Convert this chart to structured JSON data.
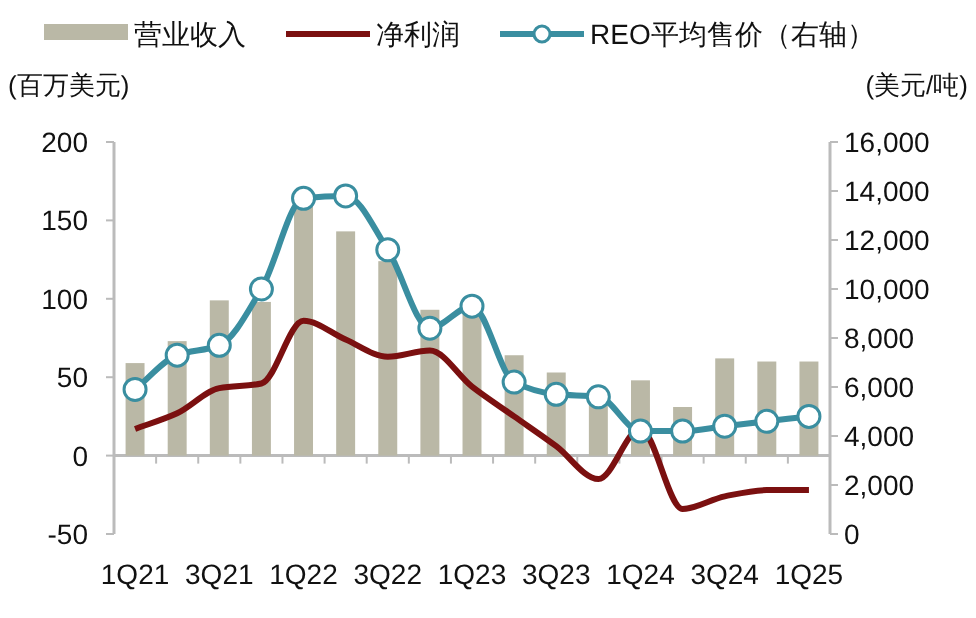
{
  "chart_data": {
    "type": "bar",
    "categories": [
      "1Q21",
      null,
      "3Q21",
      null,
      "1Q22",
      null,
      "3Q22",
      null,
      "1Q23",
      null,
      "3Q23",
      null,
      "1Q24",
      null,
      "3Q24",
      null,
      "1Q25"
    ],
    "series": [
      {
        "name": "营业收入",
        "color": "#bab8a6",
        "values": [
          59,
          73,
          99,
          98,
          159,
          143,
          124,
          93,
          91,
          64,
          53,
          36,
          48,
          31,
          62,
          60,
          60
        ]
      },
      {
        "name": "净利润",
        "type": "line",
        "color": "#7b1010",
        "values": [
          17,
          27,
          43,
          46,
          86,
          74,
          63,
          67,
          44,
          25,
          6,
          -15,
          17,
          -34,
          -26,
          -22,
          -22
        ]
      },
      {
        "name": "REO平均售价（右轴）",
        "type": "line",
        "axis": "y2",
        "marker": "circle",
        "color": "#3a8ea0",
        "values": [
          5900,
          7300,
          7700,
          10000,
          13700,
          13800,
          11600,
          8400,
          9300,
          6200,
          5700,
          5600,
          4200,
          4200,
          4400,
          4600,
          4800
        ]
      }
    ],
    "ylabel": "(百万美元)",
    "y2label": "(美元/吨)",
    "ylim": [
      -50,
      200
    ],
    "yticks": [
      -50,
      0,
      50,
      100,
      150,
      200
    ],
    "y2lim": [
      0,
      16000
    ],
    "y2ticks": [
      0,
      {
        "value": 2000,
        "label": "2,000"
      },
      {
        "value": 4000,
        "label": "4,000"
      },
      {
        "value": 6000,
        "label": "6,000"
      },
      {
        "value": 8000,
        "label": "8,000"
      },
      {
        "value": 10000,
        "label": "10,000"
      },
      {
        "value": 12000,
        "label": "12,000"
      },
      {
        "value": 14000,
        "label": "14,000"
      },
      {
        "value": 16000,
        "label": "16,000"
      }
    ],
    "legend": "top"
  }
}
